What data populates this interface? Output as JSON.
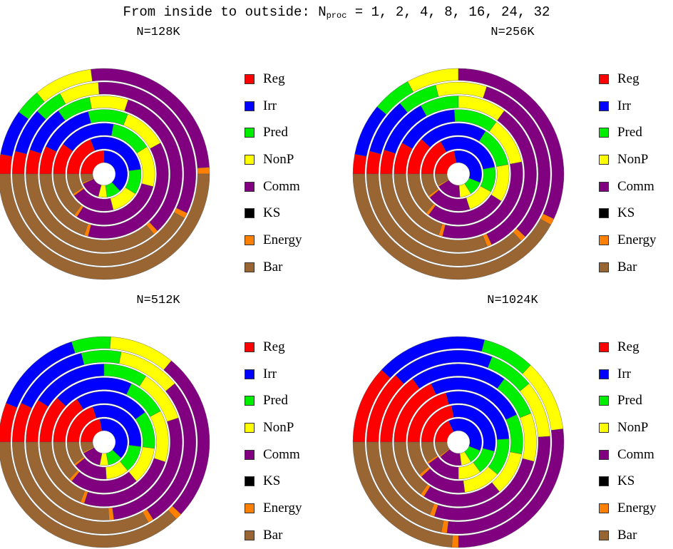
{
  "header": {
    "prefix": "From inside to outside: N",
    "sub": "proc",
    "suffix": " = 1, 2, 4, 8, 16, 24, 32"
  },
  "colors": {
    "Reg": "#ff0000",
    "Irr": "#0000ff",
    "Pred": "#00ee00",
    "NonP": "#ffff00",
    "Comm": "#800080",
    "KS": "#000000",
    "Energy": "#ff8000",
    "Bar": "#996633"
  },
  "legend": [
    "Reg",
    "Irr",
    "Pred",
    "NonP",
    "Comm",
    "KS",
    "Energy",
    "Bar"
  ],
  "chart_data": [
    {
      "type": "pie",
      "title": "N=128K",
      "rings": [
        "1",
        "2",
        "4",
        "8",
        "16",
        "24",
        "32"
      ],
      "categories": [
        "Reg",
        "Irr",
        "Pred",
        "NonP",
        "Comm",
        "KS",
        "Energy",
        "Bar"
      ],
      "series": [
        {
          "name": "1",
          "values": [
            25,
            38,
            10,
            6,
            14,
            0,
            1,
            6
          ]
        },
        {
          "name": "2",
          "values": [
            19,
            29,
            11,
            12,
            19,
            0,
            1,
            9
          ]
        },
        {
          "name": "4",
          "values": [
            10,
            18,
            13,
            13,
            30,
            0,
            1,
            15
          ]
        },
        {
          "name": "8",
          "values": [
            7,
            14,
            10,
            11,
            37,
            0,
            1,
            20
          ]
        },
        {
          "name": "16",
          "values": [
            5,
            10,
            7,
            8,
            33,
            0,
            1,
            36
          ]
        },
        {
          "name": "24",
          "values": [
            4,
            8,
            5,
            7,
            33,
            0,
            1,
            42
          ]
        },
        {
          "name": "32",
          "values": [
            3,
            7,
            4,
            9,
            26,
            0,
            1,
            50
          ]
        }
      ]
    },
    {
      "type": "pie",
      "title": "N=256K",
      "rings": [
        "1",
        "2",
        "4",
        "8",
        "16",
        "24",
        "32"
      ],
      "categories": [
        "Reg",
        "Irr",
        "Pred",
        "NonP",
        "Comm",
        "KS",
        "Energy",
        "Bar"
      ],
      "series": [
        {
          "name": "1",
          "values": [
            22,
            34,
            10,
            8,
            17,
            0,
            1,
            8
          ]
        },
        {
          "name": "2",
          "values": [
            17,
            30,
            11,
            12,
            19,
            0,
            1,
            10
          ]
        },
        {
          "name": "4",
          "values": [
            12,
            22,
            13,
            12,
            26,
            0,
            1,
            14
          ]
        },
        {
          "name": "8",
          "values": [
            8,
            16,
            11,
            12,
            32,
            0,
            1,
            20
          ]
        },
        {
          "name": "16",
          "values": [
            5,
            12,
            8,
            10,
            33,
            0,
            1,
            31
          ]
        },
        {
          "name": "24",
          "values": [
            4,
            10,
            7,
            9,
            32,
            0,
            1,
            37
          ]
        },
        {
          "name": "32",
          "values": [
            3,
            8,
            6,
            8,
            32,
            0,
            1,
            42
          ]
        }
      ]
    },
    {
      "type": "pie",
      "title": "N=512K",
      "rings": [
        "1",
        "2",
        "4",
        "8",
        "16",
        "24",
        "32"
      ],
      "categories": [
        "Reg",
        "Irr",
        "Pred",
        "NonP",
        "Comm",
        "KS",
        "Energy",
        "Bar"
      ],
      "series": [
        {
          "name": "1",
          "values": [
            22,
            40,
            10,
            6,
            14,
            0,
            1,
            7
          ]
        },
        {
          "name": "2",
          "values": [
            20,
            32,
            12,
            10,
            15,
            0,
            1,
            10
          ]
        },
        {
          "name": "4",
          "values": [
            16,
            24,
            12,
            12,
            22,
            0,
            1,
            13
          ]
        },
        {
          "name": "8",
          "values": [
            12,
            20,
            10,
            13,
            25,
            0,
            1,
            19
          ]
        },
        {
          "name": "16",
          "values": [
            9,
            16,
            9,
            11,
            28,
            0,
            1,
            26
          ]
        },
        {
          "name": "24",
          "values": [
            7,
            14,
            7,
            11,
            27,
            0,
            1,
            33
          ]
        },
        {
          "name": "32",
          "values": [
            6,
            14,
            6,
            10,
            26,
            0,
            1,
            37
          ]
        }
      ]
    },
    {
      "type": "pie",
      "title": "N=1024K",
      "rings": [
        "1",
        "2",
        "4",
        "8",
        "16",
        "24",
        "32"
      ],
      "categories": [
        "Reg",
        "Irr",
        "Pred",
        "NonP",
        "Comm",
        "KS",
        "Energy",
        "Bar"
      ],
      "series": [
        {
          "name": "1",
          "values": [
            18,
            38,
            10,
            7,
            16,
            0,
            1,
            10
          ]
        },
        {
          "name": "2",
          "values": [
            22,
            32,
            11,
            10,
            15,
            0,
            1,
            9
          ]
        },
        {
          "name": "4",
          "values": [
            21,
            28,
            12,
            12,
            15,
            0,
            1,
            11
          ]
        },
        {
          "name": "8",
          "values": [
            18,
            25,
            10,
            11,
            20,
            0,
            1,
            15
          ]
        },
        {
          "name": "16",
          "values": [
            15,
            20,
            9,
            10,
            26,
            0,
            1,
            19
          ]
        },
        {
          "name": "24",
          "values": [
            13,
            18,
            8,
            10,
            28,
            0,
            1,
            22
          ]
        },
        {
          "name": "32",
          "values": [
            12,
            17,
            8,
            11,
            27,
            0,
            1,
            24
          ]
        }
      ]
    }
  ]
}
